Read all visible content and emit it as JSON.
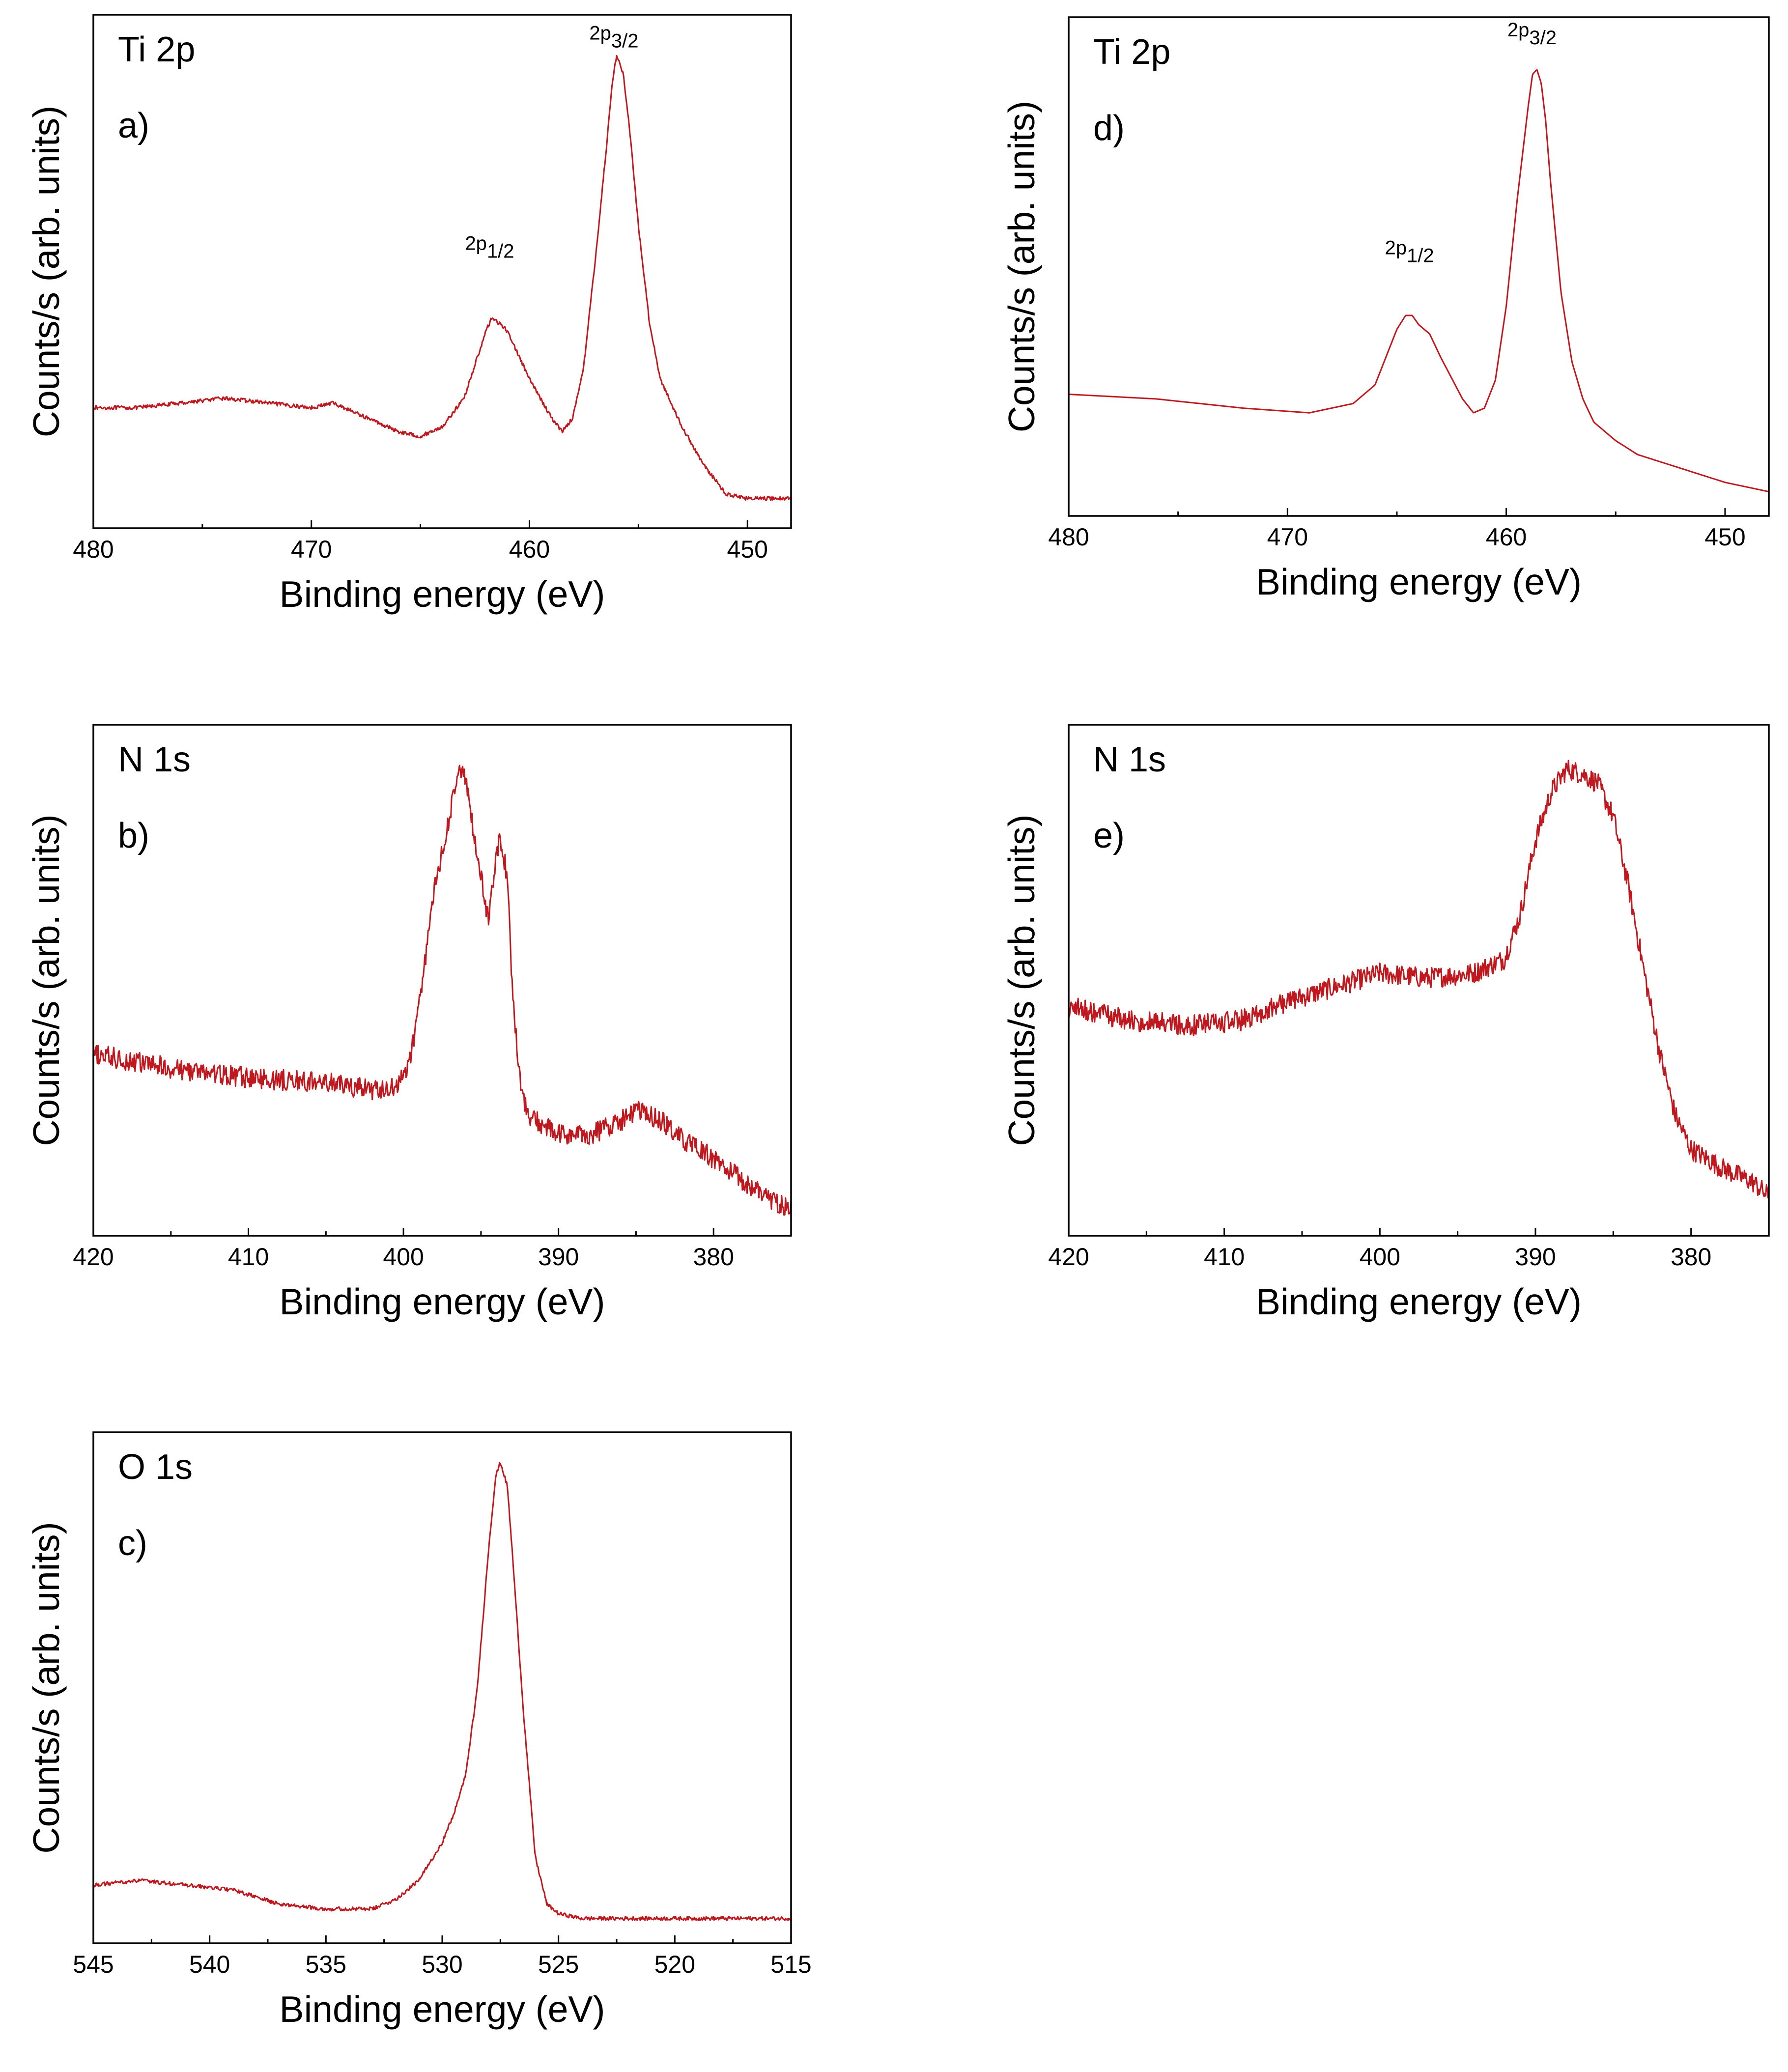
{
  "figure_colors": {
    "curve": "#c0181f",
    "axes": "#000000"
  },
  "chart_data": [
    {
      "id": "a",
      "type": "line",
      "panel_label": "a)",
      "element_label": "Ti 2p",
      "xlabel": "Binding energy (eV)",
      "ylabel": "Counts/s (arb. units)",
      "xlim": [
        480,
        448
      ],
      "xticks": [
        480,
        470,
        460,
        450
      ],
      "ylim": [
        0,
        1
      ],
      "grid": false,
      "peaks": [
        {
          "x": 461.6,
          "y": 0.52,
          "main": "2p",
          "sub": "1/2"
        },
        {
          "x": 455.9,
          "y": 0.96,
          "main": "2p",
          "sub": "3/2"
        }
      ],
      "series": [
        {
          "name": "Ti 2p",
          "noise": 0.004,
          "x": [
            480,
            478,
            476,
            474,
            472,
            470,
            469,
            468,
            466,
            465,
            464,
            463,
            462,
            461.7,
            461,
            460,
            459,
            458.5,
            458,
            457.5,
            457,
            456.5,
            456.2,
            456,
            455.7,
            455.4,
            455,
            454.5,
            454,
            453,
            452,
            451,
            450,
            449,
            448
          ],
          "y": [
            0.22,
            0.22,
            0.23,
            0.24,
            0.23,
            0.22,
            0.23,
            0.21,
            0.17,
            0.16,
            0.18,
            0.24,
            0.38,
            0.41,
            0.38,
            0.28,
            0.2,
            0.17,
            0.2,
            0.31,
            0.52,
            0.75,
            0.9,
            0.96,
            0.92,
            0.8,
            0.6,
            0.4,
            0.28,
            0.18,
            0.1,
            0.04,
            0.03,
            0.03,
            0.03
          ]
        }
      ]
    },
    {
      "id": "b",
      "type": "line",
      "panel_label": "b)",
      "element_label": "N 1s",
      "xlabel": "Binding energy (eV)",
      "ylabel": "Counts/s (arb. units)",
      "xlim": [
        420,
        375
      ],
      "xticks": [
        420,
        410,
        400,
        390,
        380
      ],
      "ylim": [
        0,
        1
      ],
      "grid": false,
      "series": [
        {
          "name": "N 1s",
          "noise": 0.022,
          "x": [
            420,
            415,
            410,
            405,
            401,
            400,
            399.5,
            399,
            398,
            397,
            396.5,
            396,
            395.5,
            395,
            394.5,
            394,
            393.7,
            393.3,
            393,
            392.5,
            392,
            391,
            390,
            388,
            386,
            385,
            384,
            383,
            382,
            380,
            378,
            376,
            375
          ],
          "y": [
            0.35,
            0.32,
            0.3,
            0.29,
            0.27,
            0.3,
            0.35,
            0.45,
            0.7,
            0.85,
            0.95,
            0.93,
            0.82,
            0.72,
            0.63,
            0.78,
            0.8,
            0.72,
            0.5,
            0.3,
            0.22,
            0.2,
            0.18,
            0.18,
            0.21,
            0.23,
            0.22,
            0.2,
            0.17,
            0.13,
            0.08,
            0.04,
            0.02
          ]
        }
      ]
    },
    {
      "id": "c",
      "type": "line",
      "panel_label": "c)",
      "element_label": "O 1s",
      "xlabel": "Binding energy (eV)",
      "ylabel": "Counts/s (arb. units)",
      "xlim": [
        545,
        515
      ],
      "xticks": [
        545,
        540,
        535,
        530,
        525,
        520,
        515
      ],
      "ylim": [
        0,
        1
      ],
      "grid": false,
      "series": [
        {
          "name": "O 1s",
          "noise": 0.004,
          "x": [
            545,
            543,
            541,
            539,
            537,
            535,
            533,
            532,
            531,
            530,
            529.5,
            529,
            528.5,
            528,
            527.7,
            527.5,
            527.2,
            527,
            526.5,
            526,
            525.5,
            525,
            524,
            522,
            520,
            518,
            515
          ],
          "y": [
            0.09,
            0.1,
            0.09,
            0.08,
            0.05,
            0.04,
            0.04,
            0.06,
            0.1,
            0.18,
            0.24,
            0.32,
            0.5,
            0.8,
            0.95,
            0.98,
            0.93,
            0.8,
            0.45,
            0.15,
            0.05,
            0.03,
            0.02,
            0.02,
            0.02,
            0.02,
            0.02
          ]
        }
      ]
    },
    {
      "id": "d",
      "type": "line",
      "panel_label": "d)",
      "element_label": "Ti 2p",
      "xlabel": "Binding energy (eV)",
      "ylabel": "Counts/s (arb. units)",
      "xlim": [
        480,
        448
      ],
      "xticks": [
        480,
        470,
        460,
        450
      ],
      "ylim": [
        0,
        1
      ],
      "grid": false,
      "peaks": [
        {
          "x": 464.2,
          "y": 0.5,
          "main": "2p",
          "sub": "1/2"
        },
        {
          "x": 458.6,
          "y": 0.97,
          "main": "2p",
          "sub": "3/2"
        }
      ],
      "series": [
        {
          "name": "Ti 2p",
          "noise": 0,
          "x": [
            480,
            476,
            472,
            469,
            467,
            466,
            465.5,
            465,
            464.6,
            464.3,
            464,
            463.5,
            463,
            462,
            461.5,
            461,
            460.5,
            460,
            459.5,
            459,
            458.8,
            458.6,
            458.4,
            458.2,
            458,
            457.5,
            457,
            456.5,
            456,
            455,
            454,
            452,
            450,
            448
          ],
          "y": [
            0.23,
            0.22,
            0.2,
            0.19,
            0.21,
            0.25,
            0.31,
            0.37,
            0.4,
            0.4,
            0.38,
            0.36,
            0.31,
            0.22,
            0.19,
            0.2,
            0.26,
            0.42,
            0.65,
            0.85,
            0.92,
            0.93,
            0.9,
            0.82,
            0.7,
            0.45,
            0.3,
            0.22,
            0.17,
            0.13,
            0.1,
            0.07,
            0.04,
            0.02
          ]
        }
      ]
    },
    {
      "id": "e",
      "type": "line",
      "panel_label": "e)",
      "element_label": "N 1s",
      "xlabel": "Binding energy (eV)",
      "ylabel": "Counts/s (arb. units)",
      "xlim": [
        420,
        375
      ],
      "xticks": [
        420,
        410,
        400,
        390,
        380
      ],
      "ylim": [
        0,
        1
      ],
      "grid": false,
      "series": [
        {
          "name": "N 1s",
          "noise": 0.022,
          "x": [
            420,
            416,
            412,
            409,
            406,
            403,
            400,
            397,
            394,
            392,
            391,
            390,
            389,
            388,
            387,
            386,
            385,
            384,
            383,
            382,
            381,
            380,
            378,
            376,
            375
          ],
          "y": [
            0.45,
            0.42,
            0.41,
            0.42,
            0.46,
            0.49,
            0.52,
            0.51,
            0.52,
            0.55,
            0.64,
            0.8,
            0.9,
            0.95,
            0.94,
            0.92,
            0.85,
            0.7,
            0.52,
            0.35,
            0.22,
            0.15,
            0.11,
            0.08,
            0.05
          ]
        }
      ]
    }
  ]
}
